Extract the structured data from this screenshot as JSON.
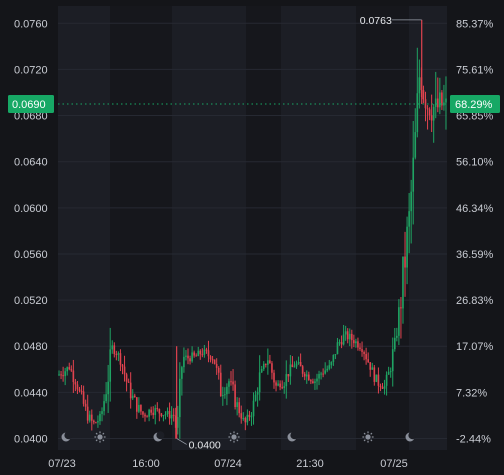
{
  "chart_data": {
    "type": "candlestick",
    "title": "",
    "y_ticks_left": [
      "0.0760",
      "0.0720",
      "0.0680",
      "0.0640",
      "0.0600",
      "0.0560",
      "0.0520",
      "0.0480",
      "0.0440",
      "0.0400"
    ],
    "y_ticks_right": [
      "85.37%",
      "75.61%",
      "65.85%",
      "56.10%",
      "46.34%",
      "36.59%",
      "26.83%",
      "17.07%",
      "7.32%",
      "-2.44%"
    ],
    "x_ticks": [
      "07/23",
      "16:00",
      "07/24",
      "21:30",
      "07/25"
    ],
    "ylim": [
      0.039,
      0.0775
    ],
    "current_price": {
      "value": "0.0690",
      "pct": "68.29%"
    },
    "annotations": {
      "high": "0.0763",
      "low": "0.0400"
    },
    "session_markers": [
      "moon",
      "sun",
      "moon",
      "sun",
      "moon",
      "sun",
      "moon"
    ],
    "colors": {
      "up": "#1fa463",
      "down": "#e0434f",
      "tag": "#17a865",
      "background": "#141519",
      "grid": "#262932"
    },
    "price_path": [
      [
        0.0,
        0.0455
      ],
      [
        0.03,
        0.0462
      ],
      [
        0.05,
        0.0445
      ],
      [
        0.07,
        0.0425
      ],
      [
        0.09,
        0.0412
      ],
      [
        0.11,
        0.0418
      ],
      [
        0.125,
        0.0445
      ],
      [
        0.14,
        0.048
      ],
      [
        0.16,
        0.047
      ],
      [
        0.18,
        0.0445
      ],
      [
        0.2,
        0.043
      ],
      [
        0.22,
        0.042
      ],
      [
        0.24,
        0.0425
      ],
      [
        0.27,
        0.0422
      ],
      [
        0.3,
        0.042
      ],
      [
        0.305,
        0.0402
      ],
      [
        0.32,
        0.047
      ],
      [
        0.35,
        0.047
      ],
      [
        0.37,
        0.0475
      ],
      [
        0.4,
        0.047
      ],
      [
        0.42,
        0.044
      ],
      [
        0.44,
        0.045
      ],
      [
        0.46,
        0.043
      ],
      [
        0.48,
        0.0412
      ],
      [
        0.5,
        0.0425
      ],
      [
        0.52,
        0.0455
      ],
      [
        0.54,
        0.047
      ],
      [
        0.56,
        0.0445
      ],
      [
        0.58,
        0.045
      ],
      [
        0.61,
        0.0465
      ],
      [
        0.64,
        0.0455
      ],
      [
        0.66,
        0.045
      ],
      [
        0.68,
        0.0458
      ],
      [
        0.7,
        0.0462
      ],
      [
        0.72,
        0.0482
      ],
      [
        0.74,
        0.049
      ],
      [
        0.76,
        0.0485
      ],
      [
        0.78,
        0.048
      ],
      [
        0.8,
        0.0465
      ],
      [
        0.82,
        0.045
      ],
      [
        0.84,
        0.0445
      ],
      [
        0.855,
        0.0462
      ],
      [
        0.87,
        0.049
      ],
      [
        0.885,
        0.053
      ],
      [
        0.9,
        0.058
      ],
      [
        0.915,
        0.064
      ],
      [
        0.93,
        0.072
      ],
      [
        0.94,
        0.07
      ],
      [
        0.95,
        0.069
      ],
      [
        0.96,
        0.069
      ],
      [
        0.97,
        0.0685
      ],
      [
        0.985,
        0.069
      ],
      [
        1.0,
        0.0685
      ]
    ]
  }
}
